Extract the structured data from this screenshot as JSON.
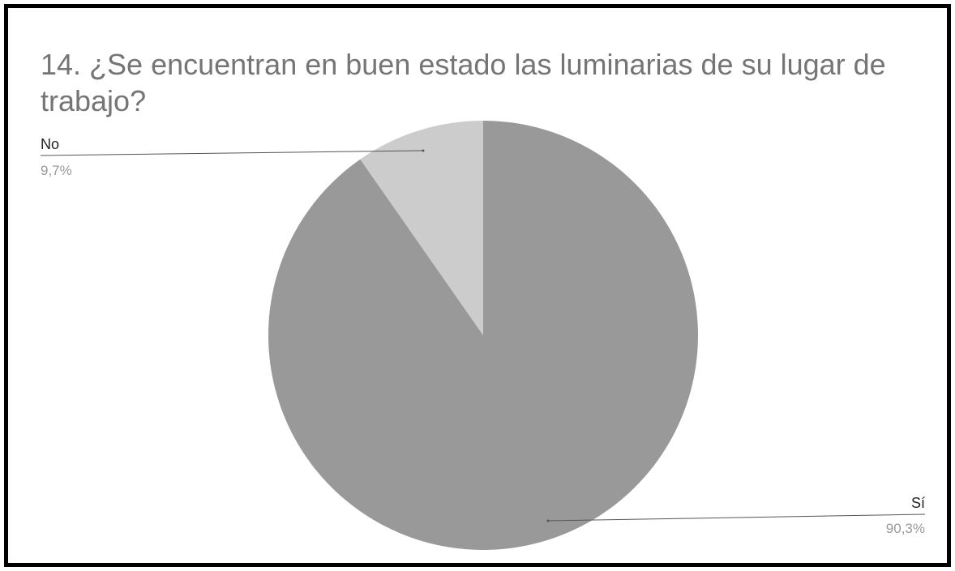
{
  "chart_data": {
    "type": "pie",
    "title": "14. ¿Se encuentran en buen estado las luminarias de su lugar de trabajo?",
    "categories": [
      "No",
      "Sí"
    ],
    "values": [
      9.7,
      90.3
    ],
    "value_labels": [
      "9,7%",
      "90,3%"
    ],
    "colors": [
      "#cccccc",
      "#999999"
    ],
    "label_colors": {
      "name": "#222222",
      "percent": "#999999"
    },
    "legend": "none",
    "start": "top",
    "direction": "counter-clockwise from top for No, remainder clockwise for Sí"
  }
}
